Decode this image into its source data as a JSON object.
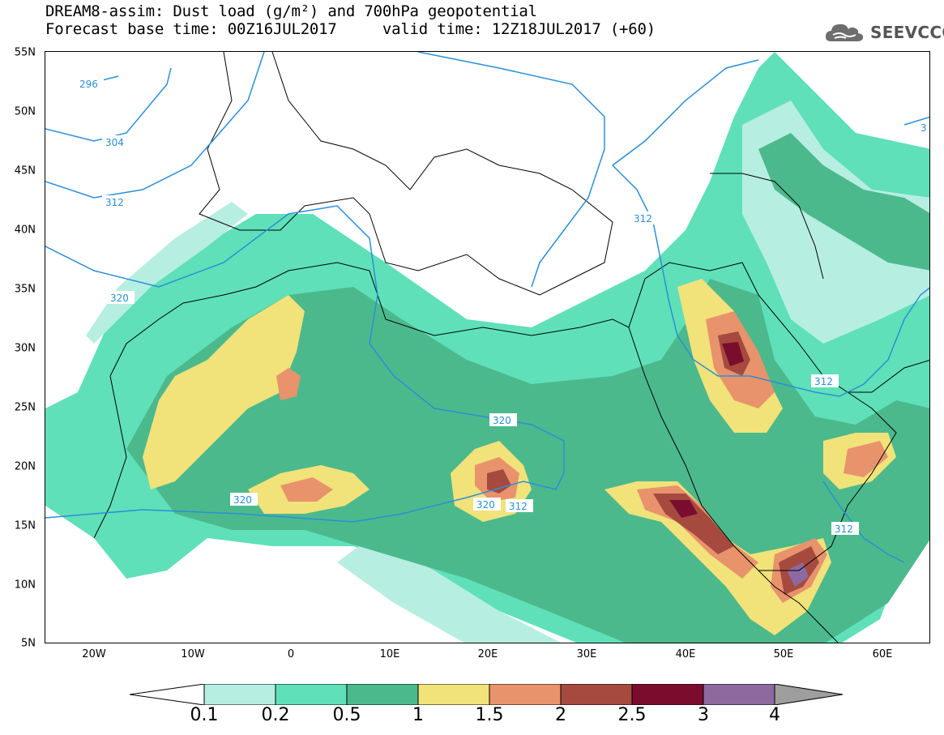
{
  "header": {
    "title_line1": "DREAM8-assim: Dust load (g/m²) and 700hPa geopotential",
    "title_line2": "Forecast base time: 00Z16JUL2017     valid time: 12Z18JUL2017 (+60)",
    "logo_text": "SEEVCCC"
  },
  "axes": {
    "lat_labels": [
      "55N",
      "50N",
      "45N",
      "40N",
      "35N",
      "30N",
      "25N",
      "20N",
      "15N",
      "10N",
      "5N"
    ],
    "lon_labels": [
      "20W",
      "10W",
      "0",
      "10E",
      "20E",
      "30E",
      "40E",
      "50E",
      "60E"
    ]
  },
  "contours": {
    "labels": [
      "296",
      "304",
      "312",
      "320",
      "312",
      "320",
      "320",
      "320",
      "312",
      "312",
      "312",
      "3"
    ],
    "color": "#2a8fd8"
  },
  "colorbar": {
    "labels": [
      "0.1",
      "0.2",
      "0.5",
      "1",
      "1.5",
      "2",
      "2.5",
      "3",
      "4"
    ],
    "colors": [
      "#ffffff",
      "#b7eee2",
      "#5fe0b8",
      "#4cb98c",
      "#f1e27a",
      "#e8936c",
      "#a64a40",
      "#7a0d2e",
      "#8c6aa0",
      "#9e9e9e"
    ]
  },
  "colors": {
    "land_outline": "#000000",
    "background": "#ffffff"
  }
}
